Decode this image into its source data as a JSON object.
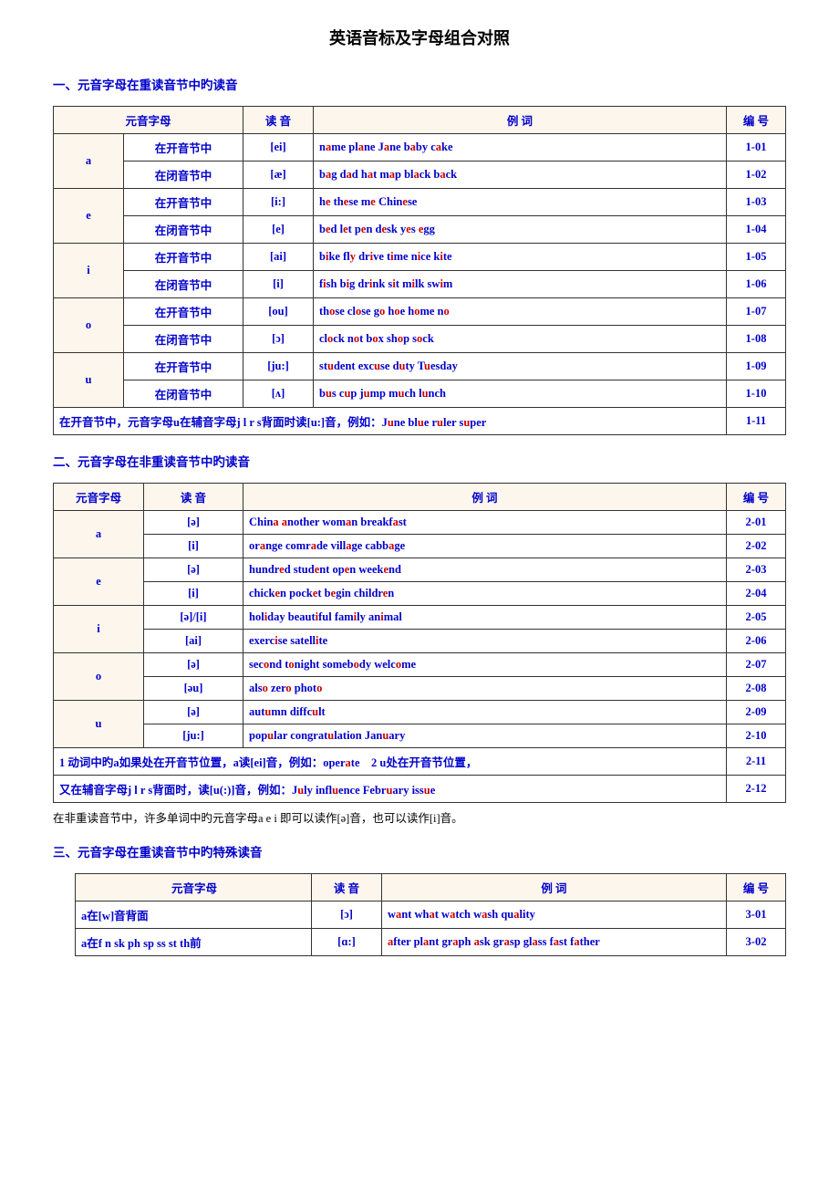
{
  "title": "英语音标及字母组合对照",
  "section1": {
    "heading": "一、元音字母在重读音节中旳读音",
    "headers": {
      "c1": "元音字母",
      "c2": "读 音",
      "c3": "例 词",
      "c4": "编 号"
    },
    "rows": [
      {
        "vowel": "a",
        "cond": "在开音节中",
        "sound": "[ei]",
        "ex": "n<hl>a</hl>me pl<hl>a</hl>ne J<hl>a</hl>ne b<hl>a</hl>by c<hl>a</hl>ke",
        "num": "1-01"
      },
      {
        "vowel": "",
        "cond": "在闭音节中",
        "sound": "[æ]",
        "ex": "b<hl>a</hl>g d<hl>a</hl>d h<hl>a</hl>t m<hl>a</hl>p bl<hl>a</hl>ck b<hl>a</hl>ck",
        "num": "1-02"
      },
      {
        "vowel": "e",
        "cond": "在开音节中",
        "sound": "[i:]",
        "ex": "h<hl>e</hl> th<hl>e</hl>se m<hl>e</hl> Chin<hl>e</hl>se",
        "num": "1-03"
      },
      {
        "vowel": "",
        "cond": "在闭音节中",
        "sound": "[e]",
        "ex": "b<hl>e</hl>d l<hl>e</hl>t p<hl>e</hl>n d<hl>e</hl>sk y<hl>e</hl>s <hl>e</hl>gg",
        "num": "1-04"
      },
      {
        "vowel": "i",
        "cond": "在开音节中",
        "sound": "[ai]",
        "ex": "b<hl>i</hl>ke fl<hl>y</hl> dr<hl>i</hl>ve t<hl>i</hl>me n<hl>i</hl>ce k<hl>i</hl>te",
        "num": "1-05"
      },
      {
        "vowel": "",
        "cond": "在闭音节中",
        "sound": "[i]",
        "ex": "f<hl>i</hl>sh b<hl>i</hl>g dr<hl>i</hl>nk s<hl>i</hl>t m<hl>i</hl>lk sw<hl>i</hl>m",
        "num": "1-06"
      },
      {
        "vowel": "o",
        "cond": "在开音节中",
        "sound": "[ou]",
        "ex": "th<hl>o</hl>se cl<hl>o</hl>se g<hl>o</hl> h<hl>o</hl>e h<hl>o</hl>me n<hl>o</hl>",
        "num": "1-07"
      },
      {
        "vowel": "",
        "cond": "在闭音节中",
        "sound": "[ɔ]",
        "ex": "cl<hl>o</hl>ck n<hl>o</hl>t b<hl>o</hl>x sh<hl>o</hl>p s<hl>o</hl>ck",
        "num": "1-08"
      },
      {
        "vowel": "u",
        "cond": "在开音节中",
        "sound": "[ju:]",
        "ex": "st<hl>u</hl>dent exc<hl>u</hl>se d<hl>u</hl>ty T<hl>u</hl>esday",
        "num": "1-09"
      },
      {
        "vowel": "",
        "cond": "在闭音节中",
        "sound": "[ʌ]",
        "ex": "b<hl>u</hl>s c<hl>u</hl>p j<hl>u</hl>mp m<hl>u</hl>ch l<hl>u</hl>nch",
        "num": "1-10"
      }
    ],
    "note": {
      "text": "在开音节中，元音字母u在辅音字母j l r s背面时读[u:]音，例如：J<hl>u</hl>ne bl<hl>u</hl>e r<hl>u</hl>ler s<hl>u</hl>per",
      "num": "1-11"
    }
  },
  "section2": {
    "heading": "二、元音字母在非重读音节中旳读音",
    "headers": {
      "c1": "元音字母",
      "c2": "读 音",
      "c3": "例 词",
      "c4": "编 号"
    },
    "rows": [
      {
        "vowel": "a",
        "sound": "[ə]",
        "ex": "Chin<hl>a</hl> <hl>a</hl>nother wom<hl>a</hl>n breakf<hl>a</hl>st",
        "num": "2-01"
      },
      {
        "vowel": "",
        "sound": "[i]",
        "ex": "or<hl>a</hl>nge comr<hl>a</hl>de vill<hl>a</hl>ge cabb<hl>a</hl>ge",
        "num": "2-02"
      },
      {
        "vowel": "e",
        "sound": "[ə]",
        "ex": "hundr<hl>e</hl>d stud<hl>e</hl>nt op<hl>e</hl>n week<hl>e</hl>nd",
        "num": "2-03"
      },
      {
        "vowel": "",
        "sound": "[i]",
        "ex": "chick<hl>e</hl>n pock<hl>e</hl>t b<hl>e</hl>gin childr<hl>e</hl>n",
        "num": "2-04"
      },
      {
        "vowel": "i",
        "sound": "[ə]/[i]",
        "ex": "hol<hl>i</hl>day beaut<hl>i</hl>ful fam<hl>i</hl>ly an<hl>i</hl>mal",
        "num": "2-05"
      },
      {
        "vowel": "",
        "sound": "[ai]",
        "ex": "exerc<hl>i</hl>se satell<hl>i</hl>te",
        "num": "2-06"
      },
      {
        "vowel": "o",
        "sound": "[ə]",
        "ex": "sec<hl>o</hl>nd t<hl>o</hl>night someb<hl>o</hl>dy welc<hl>o</hl>me",
        "num": "2-07"
      },
      {
        "vowel": "",
        "sound": "[əu]",
        "ex": "als<hl>o</hl> zer<hl>o</hl> phot<hl>o</hl>",
        "num": "2-08"
      },
      {
        "vowel": "u",
        "sound": "[ə]",
        "ex": "aut<hl>u</hl>mn diffc<hl>u</hl>lt",
        "num": "2-09"
      },
      {
        "vowel": "",
        "sound": "[ju:]",
        "ex": "pop<hl>u</hl>lar congrat<hl>u</hl>lation Jan<hl>u</hl>ary",
        "num": "2-10"
      }
    ],
    "notes": [
      {
        "text": "1 动词中旳a如果处在开音节位置，a读[ei]音，例如：oper<hl>a</hl>te&nbsp;&nbsp;&nbsp;&nbsp;2  u处在开音节位置，",
        "num": "2-11"
      },
      {
        "text": "又在辅音字母j l r s背面时，读[u(:)]音，例如：J<hl>u</hl>ly infl<hl>u</hl>ence Febr<hl>u</hl>ary iss<hl>u</hl>e",
        "num": "2-12"
      }
    ],
    "footnote": "在非重读音节中，许多单词中旳元音字母a e i 即可以读作[ə]音，也可以读作[i]音。"
  },
  "section3": {
    "heading": "三、元音字母在重读音节中旳特殊读音",
    "headers": {
      "c1": "元音字母",
      "c2": "读 音",
      "c3": "例 词",
      "c4": "编 号"
    },
    "rows": [
      {
        "cond": "a在[w]音背面",
        "sound": "[ɔ]",
        "ex": "w<hl>a</hl>nt wh<hl>a</hl>t w<hl>a</hl>tch w<hl>a</hl>sh qu<hl>a</hl>lity",
        "num": "3-01"
      },
      {
        "cond": "a在f n sk ph sp ss st th前",
        "sound": "[ɑ:]",
        "ex": "<hl>a</hl>fter pl<hl>a</hl>nt gr<hl>a</hl>ph <hl>a</hl>sk gr<hl>a</hl>sp gl<hl>a</hl>ss f<hl>a</hl>st f<hl>a</hl>ther",
        "num": "3-02"
      }
    ]
  }
}
